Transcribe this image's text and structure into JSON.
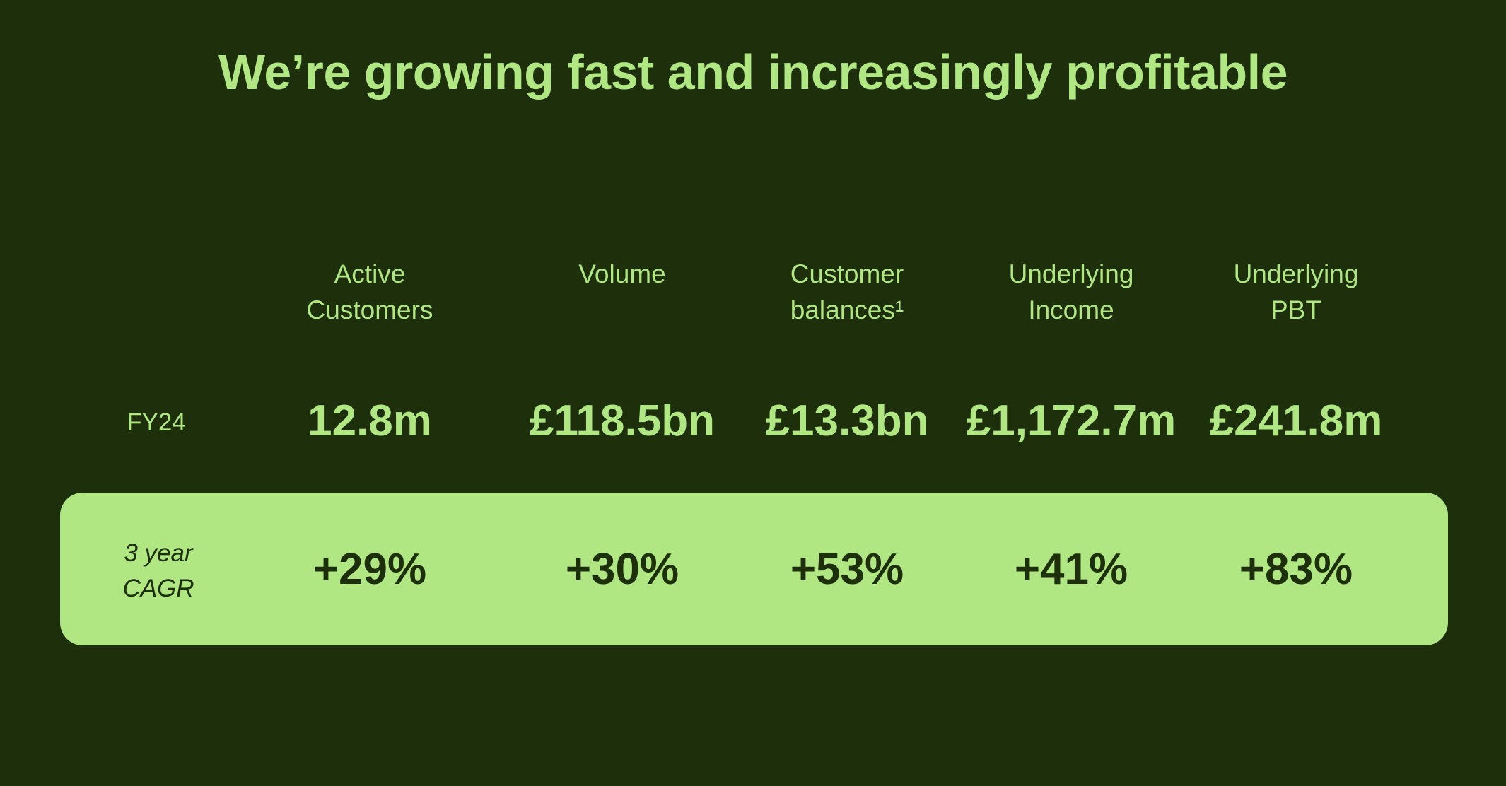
{
  "title": "We’re growing fast and increasingly profitable",
  "columns": [
    {
      "header": "Active\nCustomers",
      "fy24": "12.8m",
      "cagr": "+29%"
    },
    {
      "header": "Volume",
      "fy24": "£118.5bn",
      "cagr": "+30%"
    },
    {
      "header": "Customer\nbalances¹",
      "fy24": "£13.3bn",
      "cagr": "+53%"
    },
    {
      "header": "Underlying\nIncome",
      "fy24": "£1,172.7m",
      "cagr": "+41%"
    },
    {
      "header": "Underlying\nPBT",
      "fy24": "£241.8m",
      "cagr": "+83%"
    }
  ],
  "rows": {
    "fy24_label": "FY24",
    "cagr_label": "3 year\nCAGR"
  },
  "colors": {
    "background": "#1d300b",
    "accent": "#b0e783"
  }
}
